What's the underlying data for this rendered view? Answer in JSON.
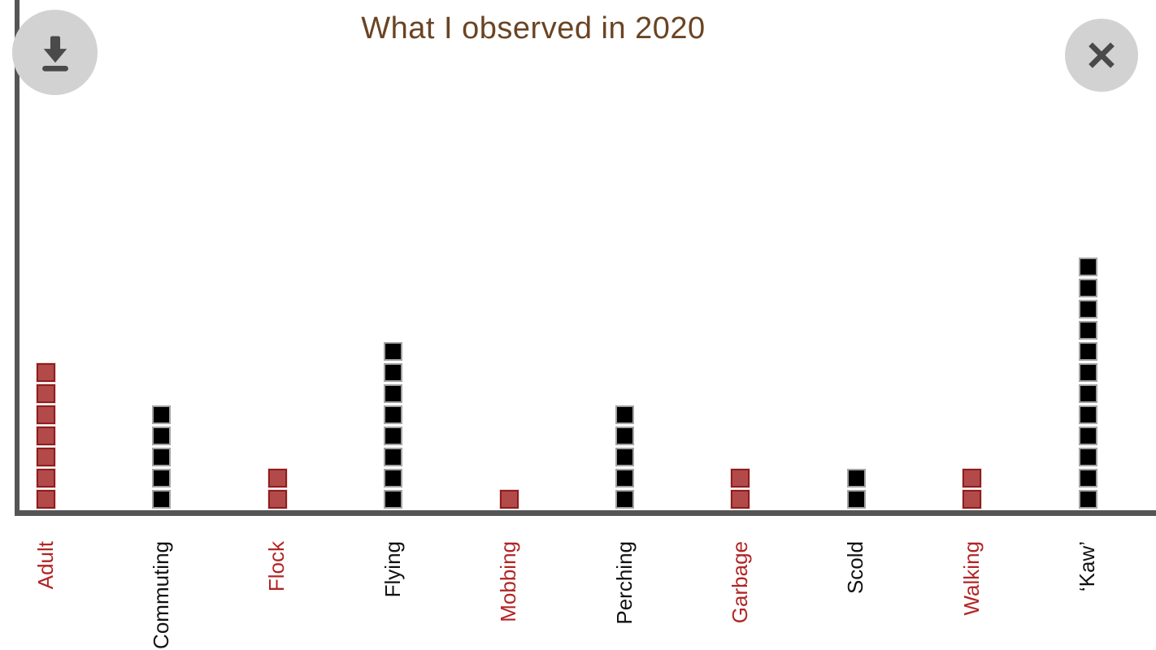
{
  "header": {
    "title": "What I observed in 2020"
  },
  "buttons": {
    "download_icon": "download-arrow",
    "close_icon": "close-x"
  },
  "chart_data": {
    "type": "bar",
    "style": "unit-squares",
    "title": "What I observed in 2020",
    "categories": [
      "Adult",
      "Commuting",
      "Flock",
      "Flying",
      "Mobbing",
      "Perching",
      "Garbage",
      "Scold",
      "Walking",
      "‘Kaw’"
    ],
    "values": [
      7,
      5,
      2,
      8,
      1,
      5,
      2,
      2,
      2,
      12
    ],
    "colors": [
      "red",
      "black",
      "red",
      "black",
      "red",
      "black",
      "red",
      "black",
      "red",
      "black"
    ],
    "xlabel": "",
    "ylabel": "",
    "ylim": [
      0,
      12
    ],
    "grid": false,
    "legend": "none",
    "palette": {
      "red_fill": "#b34a4a",
      "red_border": "#8f1d1d",
      "red_label": "#b22525",
      "black_fill": "#000000",
      "black_border": "#a3a3a3",
      "black_label": "#111111",
      "axis": "#555555",
      "title": "#6a4423",
      "button_bg": "#d2d2d2",
      "button_icon": "#4a4a4a"
    },
    "layout": {
      "first_center_x": 56.5,
      "step_x": 142.4,
      "square": 23,
      "label_halfwidth": 16
    }
  }
}
